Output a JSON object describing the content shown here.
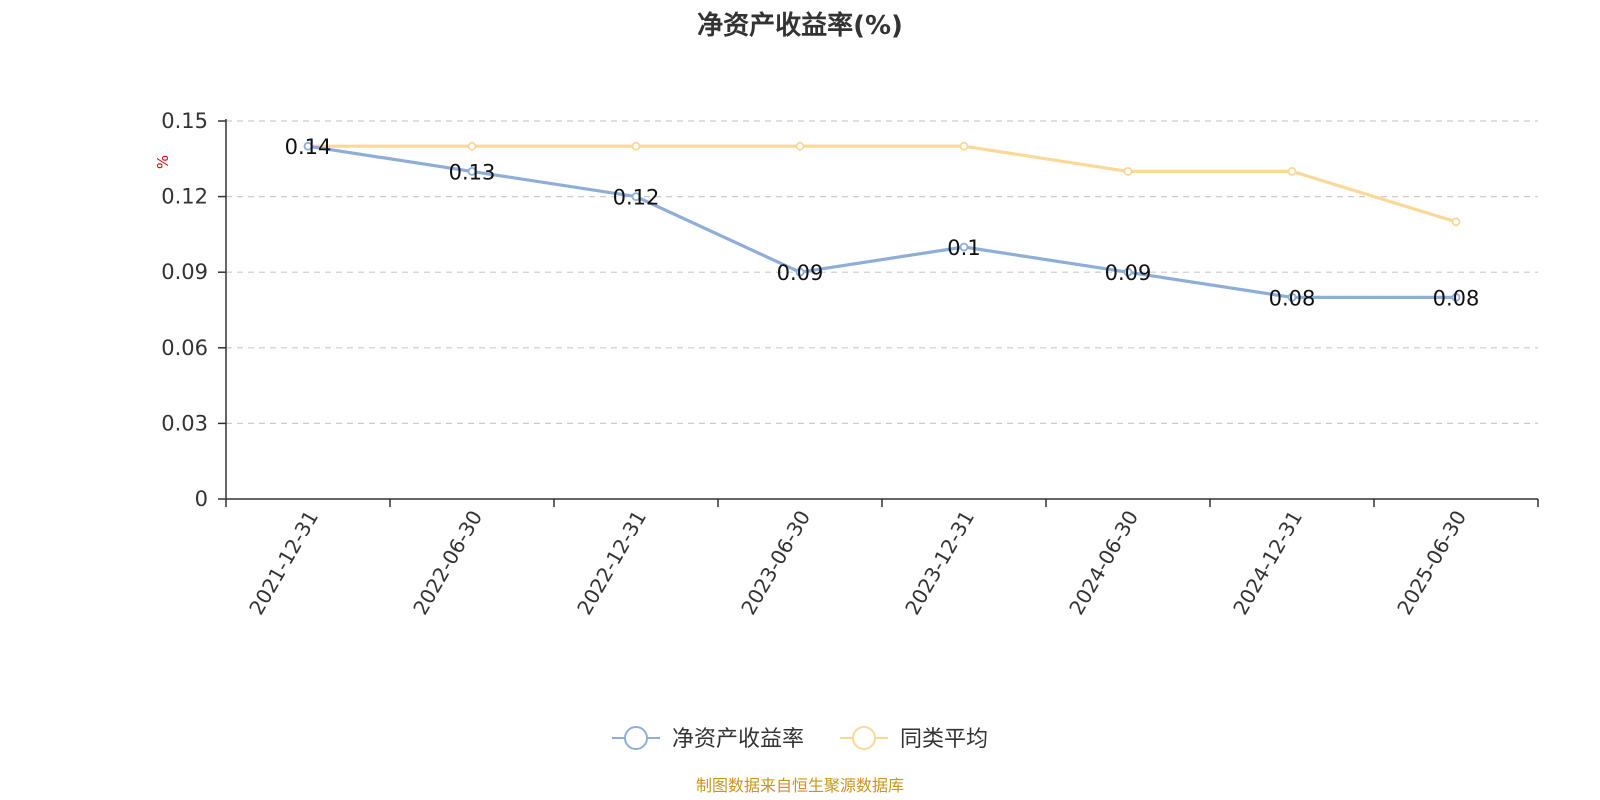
{
  "chart_data": {
    "type": "line",
    "title": "净资产收益率(%)",
    "ylabel": "%",
    "xlabel": "",
    "ylim": [
      0,
      0.15
    ],
    "yticks": [
      "0",
      "0.03",
      "0.06",
      "0.09",
      "0.12",
      "0.15"
    ],
    "categories": [
      "2021-12-31",
      "2022-06-30",
      "2022-12-31",
      "2023-06-30",
      "2023-12-31",
      "2024-06-30",
      "2024-12-31",
      "2025-06-30"
    ],
    "series": [
      {
        "name": "净资产收益率",
        "color": "#8eaed8",
        "values": [
          0.14,
          0.13,
          0.12,
          0.09,
          0.1,
          0.09,
          0.08,
          0.08
        ],
        "labels": [
          "0.14",
          "0.13",
          "0.12",
          "0.09",
          "0.1",
          "0.09",
          "0.08",
          "0.08"
        ]
      },
      {
        "name": "同类平均",
        "color": "#fad898",
        "values": [
          0.14,
          0.14,
          0.14,
          0.14,
          0.14,
          0.13,
          0.13,
          0.11
        ]
      }
    ],
    "grid": true,
    "legend_position": "bottom-center"
  },
  "footer": {
    "source": "制图数据来自恒生聚源数据库"
  }
}
